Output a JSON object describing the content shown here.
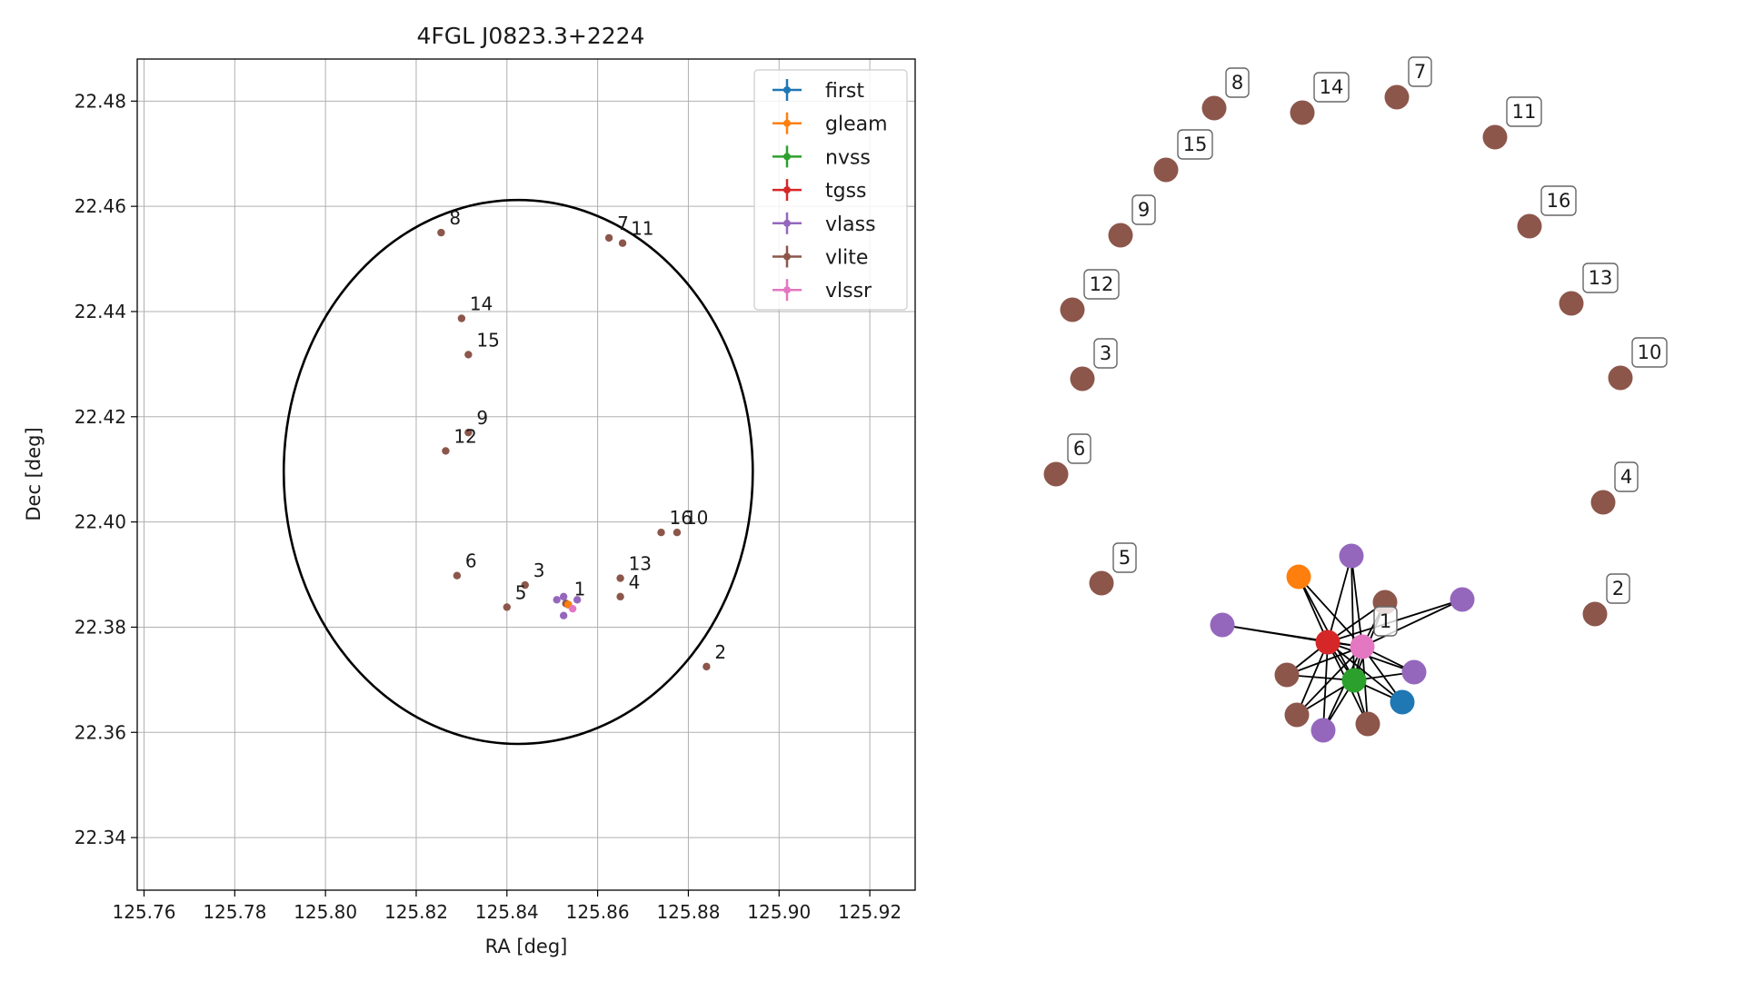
{
  "colors": {
    "first": "#1f77b4",
    "gleam": "#ff7f0e",
    "nvss": "#2ca02c",
    "tgss": "#d62728",
    "vlass": "#9467bd",
    "vlite": "#8c564b",
    "vlssr": "#e377c2",
    "grid": "#b0b0b0",
    "edge": "#000000"
  },
  "chart_data": [
    {
      "type": "scatter",
      "title": "4FGL J0823.3+2224",
      "xlabel": "RA [deg]",
      "ylabel": "Dec [deg]",
      "xlim": [
        125.7585,
        125.93
      ],
      "ylim": [
        22.33,
        22.488
      ],
      "xticks": [
        "125.76",
        "125.78",
        "125.80",
        "125.82",
        "125.84",
        "125.86",
        "125.88",
        "125.90",
        "125.92"
      ],
      "yticks": [
        "22.34",
        "22.36",
        "22.38",
        "22.40",
        "22.42",
        "22.44",
        "22.46",
        "22.48"
      ],
      "grid": true,
      "legend_position": "top-right",
      "legend": [
        "first",
        "gleam",
        "nvss",
        "tgss",
        "vlass",
        "vlite",
        "vlssr"
      ],
      "circle": {
        "center_ra": 125.8425,
        "center_dec": 22.4095,
        "radius_deg": 0.0517
      },
      "series": [
        {
          "name": "vlite",
          "points": [
            {
              "label": "1",
              "ra": 125.853,
              "dec": 22.3845
            },
            {
              "label": "2",
              "ra": 125.884,
              "dec": 22.3725
            },
            {
              "label": "3",
              "ra": 125.844,
              "dec": 22.388
            },
            {
              "label": "4",
              "ra": 125.865,
              "dec": 22.3858
            },
            {
              "label": "5",
              "ra": 125.84,
              "dec": 22.3838
            },
            {
              "label": "6",
              "ra": 125.829,
              "dec": 22.3898
            },
            {
              "label": "7",
              "ra": 125.8625,
              "dec": 22.454
            },
            {
              "label": "8",
              "ra": 125.8255,
              "dec": 22.455
            },
            {
              "label": "9",
              "ra": 125.8315,
              "dec": 22.417
            },
            {
              "label": "10",
              "ra": 125.8775,
              "dec": 22.398
            },
            {
              "label": "11",
              "ra": 125.8655,
              "dec": 22.453
            },
            {
              "label": "12",
              "ra": 125.8265,
              "dec": 22.4135
            },
            {
              "label": "13",
              "ra": 125.865,
              "dec": 22.3893
            },
            {
              "label": "14",
              "ra": 125.83,
              "dec": 22.4387
            },
            {
              "label": "15",
              "ra": 125.8315,
              "dec": 22.4318
            },
            {
              "label": "16",
              "ra": 125.874,
              "dec": 22.398
            }
          ]
        },
        {
          "name": "vlass",
          "points": [
            {
              "label": "",
              "ra": 125.851,
              "dec": 22.3852
            },
            {
              "label": "",
              "ra": 125.8525,
              "dec": 22.3822
            },
            {
              "label": "",
              "ra": 125.8525,
              "dec": 22.3858
            },
            {
              "label": "",
              "ra": 125.8555,
              "dec": 22.3852
            }
          ]
        },
        {
          "name": "vlssr",
          "points": [
            {
              "label": "",
              "ra": 125.8545,
              "dec": 22.3835
            }
          ]
        },
        {
          "name": "first",
          "points": [
            {
              "label": "",
              "ra": 125.8535,
              "dec": 22.3843
            }
          ]
        },
        {
          "name": "nvss",
          "points": [
            {
              "label": "",
              "ra": 125.8535,
              "dec": 22.3843
            }
          ]
        },
        {
          "name": "tgss",
          "points": [
            {
              "label": "",
              "ra": 125.8535,
              "dec": 22.3843
            }
          ]
        },
        {
          "name": "gleam",
          "points": [
            {
              "label": "",
              "ra": 125.8535,
              "dec": 22.3843
            }
          ]
        }
      ]
    },
    {
      "type": "network",
      "node_labels": [
        "1",
        "2",
        "3",
        "4",
        "5",
        "6",
        "7",
        "8",
        "9",
        "10",
        "11",
        "12",
        "13",
        "14",
        "15",
        "16"
      ],
      "nodes": [
        {
          "id": "n1",
          "catalog": "vlssr",
          "label": "1"
        },
        {
          "id": "n2",
          "catalog": "vlite",
          "label": "2"
        },
        {
          "id": "n3",
          "catalog": "vlite",
          "label": "3"
        },
        {
          "id": "n4",
          "catalog": "vlite",
          "label": "4"
        },
        {
          "id": "n5",
          "catalog": "vlite",
          "label": "5"
        },
        {
          "id": "n6",
          "catalog": "vlite",
          "label": "6"
        },
        {
          "id": "n7",
          "catalog": "vlite",
          "label": "7"
        },
        {
          "id": "n8",
          "catalog": "vlite",
          "label": "8"
        },
        {
          "id": "n9",
          "catalog": "vlite",
          "label": "9"
        },
        {
          "id": "n10",
          "catalog": "vlite",
          "label": "10"
        },
        {
          "id": "n11",
          "catalog": "vlite",
          "label": "11"
        },
        {
          "id": "n12",
          "catalog": "vlite",
          "label": "12"
        },
        {
          "id": "n13",
          "catalog": "vlite",
          "label": "13"
        },
        {
          "id": "n14",
          "catalog": "vlite",
          "label": "14"
        },
        {
          "id": "n15",
          "catalog": "vlite",
          "label": "15"
        },
        {
          "id": "n16",
          "catalog": "vlite",
          "label": "16"
        },
        {
          "id": "c1",
          "catalog": "tgss",
          "label": ""
        },
        {
          "id": "c2",
          "catalog": "nvss",
          "label": ""
        },
        {
          "id": "c3",
          "catalog": "gleam",
          "label": ""
        },
        {
          "id": "c4",
          "catalog": "first",
          "label": ""
        },
        {
          "id": "c5",
          "catalog": "vlass",
          "label": ""
        },
        {
          "id": "c6",
          "catalog": "vlass",
          "label": ""
        },
        {
          "id": "c7",
          "catalog": "vlass",
          "label": ""
        },
        {
          "id": "c8",
          "catalog": "vlass",
          "label": ""
        },
        {
          "id": "c9",
          "catalog": "vlass",
          "label": ""
        },
        {
          "id": "c10",
          "catalog": "vlite",
          "label": ""
        },
        {
          "id": "c11",
          "catalog": "vlite",
          "label": ""
        },
        {
          "id": "c12",
          "catalog": "vlite",
          "label": ""
        },
        {
          "id": "c13",
          "catalog": "vlite",
          "label": ""
        }
      ],
      "edges": [
        [
          "c1",
          "n1"
        ],
        [
          "c1",
          "c2"
        ],
        [
          "c1",
          "c3"
        ],
        [
          "c1",
          "c4"
        ],
        [
          "c1",
          "c5"
        ],
        [
          "c1",
          "c6"
        ],
        [
          "c1",
          "c7"
        ],
        [
          "c1",
          "c8"
        ],
        [
          "c1",
          "c9"
        ],
        [
          "c1",
          "c10"
        ],
        [
          "c1",
          "c11"
        ],
        [
          "c1",
          "c12"
        ],
        [
          "c1",
          "c13"
        ],
        [
          "n1",
          "c2"
        ],
        [
          "n1",
          "c3"
        ],
        [
          "n1",
          "c4"
        ],
        [
          "n1",
          "c5"
        ],
        [
          "n1",
          "c6"
        ],
        [
          "n1",
          "c7"
        ],
        [
          "n1",
          "c8"
        ],
        [
          "n1",
          "c9"
        ],
        [
          "n1",
          "c10"
        ],
        [
          "n1",
          "c11"
        ],
        [
          "n1",
          "c12"
        ],
        [
          "n1",
          "c13"
        ],
        [
          "c2",
          "c3"
        ],
        [
          "c2",
          "c4"
        ],
        [
          "c2",
          "c5"
        ],
        [
          "c2",
          "c8"
        ],
        [
          "c2",
          "c9"
        ],
        [
          "c2",
          "c10"
        ],
        [
          "c2",
          "c11"
        ],
        [
          "c2",
          "c12"
        ],
        [
          "c2",
          "c13"
        ]
      ]
    }
  ]
}
